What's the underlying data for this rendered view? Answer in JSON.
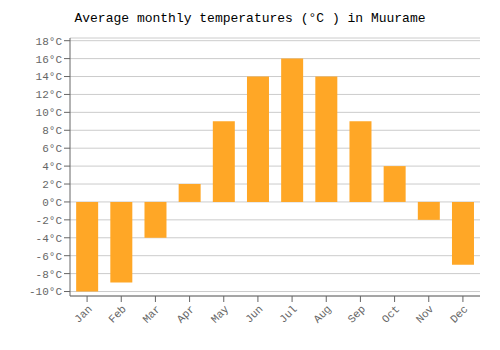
{
  "chart_data": {
    "type": "bar",
    "title": "Average monthly temperatures (°C ) in Muurame",
    "categories": [
      "Jan",
      "Feb",
      "Mar",
      "Apr",
      "May",
      "Jun",
      "Jul",
      "Aug",
      "Sep",
      "Oct",
      "Nov",
      "Dec"
    ],
    "values": [
      -10,
      -9,
      -4,
      2,
      9,
      14,
      16,
      14,
      9,
      4,
      -2,
      -7
    ],
    "color": "#FFA726",
    "ylim": [
      -10.5,
      18.3
    ],
    "yticks": [
      {
        "value": -10,
        "label": "-10°C"
      },
      {
        "value": -8,
        "label": "-8°C"
      },
      {
        "value": -6,
        "label": "-6°C"
      },
      {
        "value": -4,
        "label": "-4°C"
      },
      {
        "value": -2,
        "label": "-2°C"
      },
      {
        "value": 0,
        "label": "0°C"
      },
      {
        "value": 2,
        "label": "2°C"
      },
      {
        "value": 4,
        "label": "4°C"
      },
      {
        "value": 6,
        "label": "6°C"
      },
      {
        "value": 8,
        "label": "8°C"
      },
      {
        "value": 10,
        "label": "10°C"
      },
      {
        "value": 12,
        "label": "12°C"
      },
      {
        "value": 14,
        "label": "14°C"
      },
      {
        "value": 16,
        "label": "16°C"
      },
      {
        "value": 18,
        "label": "18°C"
      }
    ],
    "grid": true
  }
}
